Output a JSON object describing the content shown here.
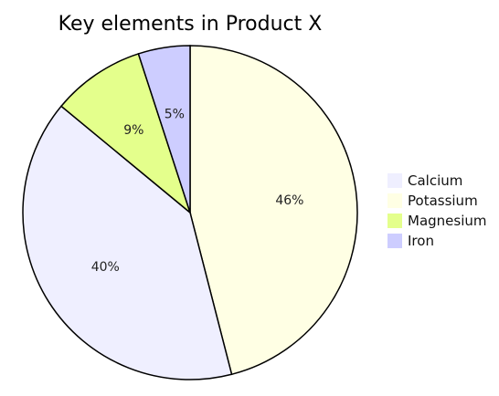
{
  "chart_data": {
    "type": "pie",
    "title": "Key elements in Product X",
    "slices": [
      {
        "name": "Calcium",
        "value": 40,
        "label": "40%",
        "color": "#efefff"
      },
      {
        "name": "Potassium",
        "value": 46,
        "label": "46%",
        "color": "#ffffe4"
      },
      {
        "name": "Magnesium",
        "value": 9,
        "label": "9%",
        "color": "#e4ff8c"
      },
      {
        "name": "Iron",
        "value": 5,
        "label": "5%",
        "color": "#cdcdff"
      }
    ],
    "slice_order": [
      "Potassium",
      "Calcium",
      "Magnesium",
      "Iron"
    ],
    "start": "12 o'clock",
    "direction": "clockwise",
    "legend": {
      "placement": "right",
      "entries": [
        "Calcium",
        "Potassium",
        "Magnesium",
        "Iron"
      ]
    },
    "stroke_color": "#000000"
  }
}
